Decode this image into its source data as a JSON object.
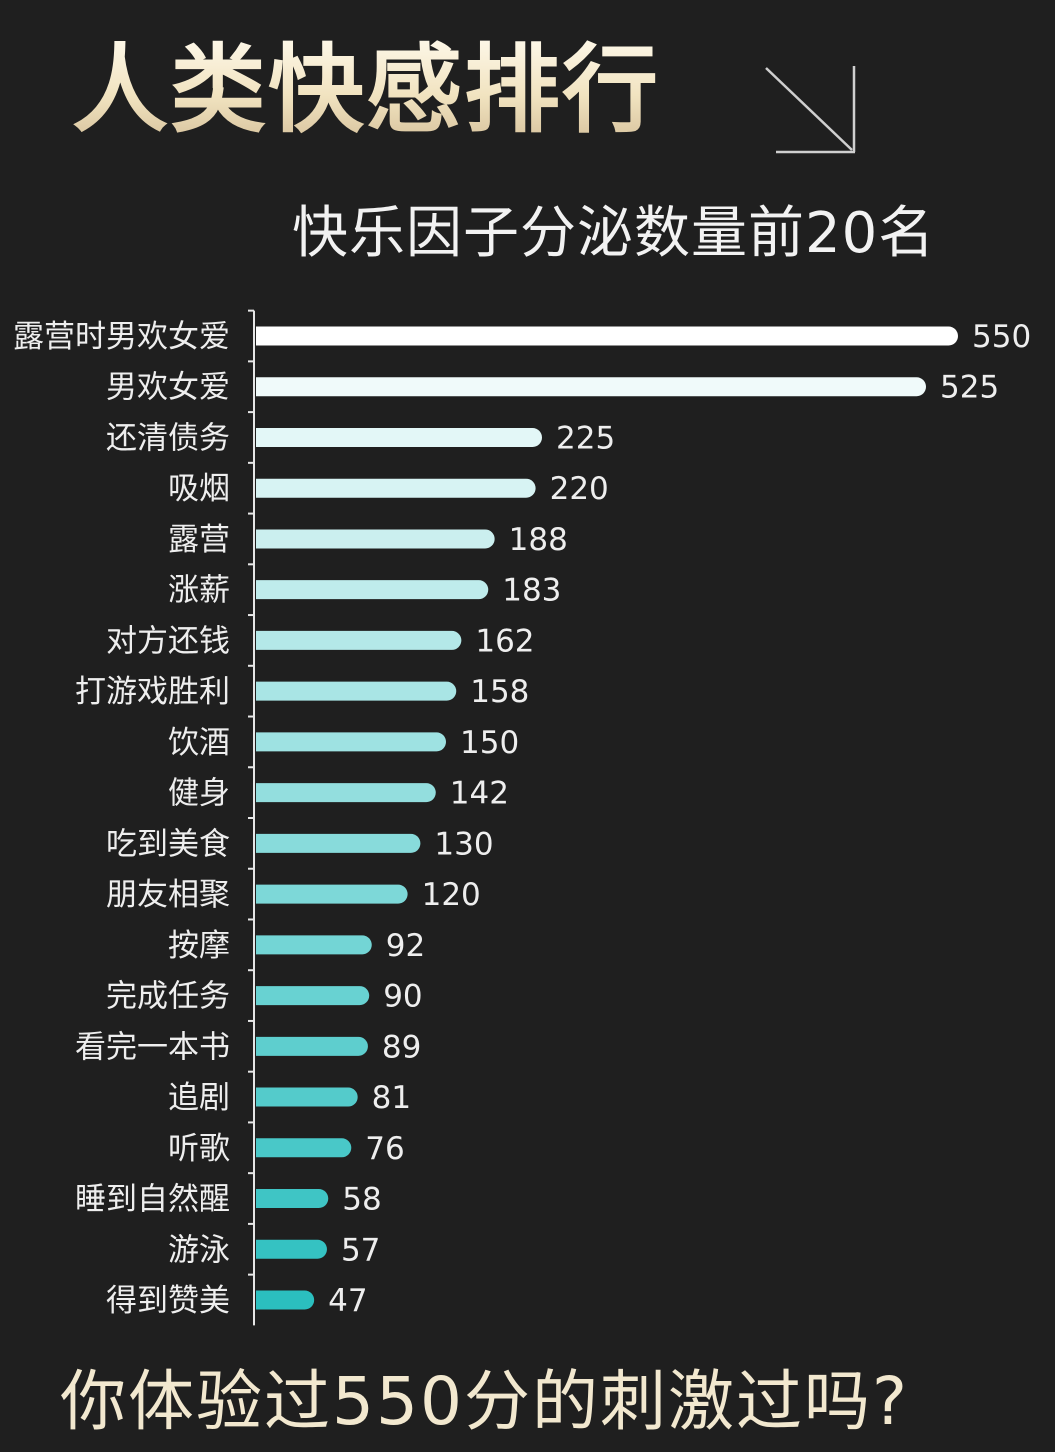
{
  "header": {
    "title": "人类快感排行",
    "subtitle": "快乐因子分泌数量前20名",
    "arrow_icon": "arrow-down-right-icon"
  },
  "footer": {
    "question": "你体验过550分的刺激过吗?"
  },
  "colors": {
    "background": "#1f1f1f",
    "bar_top": "#ffffff",
    "bar_bottom": "#2bbfbf",
    "title_gold": "#f1e3c0"
  },
  "chart_data": {
    "type": "bar",
    "orientation": "horizontal",
    "categories": [
      "露营时男欢女爱",
      "男欢女爱",
      "还清债务",
      "吸烟",
      "露营",
      "涨薪",
      "对方还钱",
      "打游戏胜利",
      "饮酒",
      "健身",
      "吃到美食",
      "朋友相聚",
      "按摩",
      "完成任务",
      "看完一本书",
      "追剧",
      "听歌",
      "睡到自然醒",
      "游泳",
      "得到赞美"
    ],
    "values": [
      550,
      525,
      225,
      220,
      188,
      183,
      162,
      158,
      150,
      142,
      130,
      120,
      92,
      90,
      89,
      81,
      76,
      58,
      57,
      47
    ],
    "value_labels": [
      "550",
      "525",
      "225",
      "220",
      "188",
      "183",
      "162",
      "158",
      "150",
      "142",
      "130",
      "120",
      "92",
      "90",
      "89",
      "81",
      "76",
      "58",
      "57",
      "47"
    ],
    "xlim": [
      0,
      550
    ],
    "grid": false,
    "legend": "none"
  }
}
